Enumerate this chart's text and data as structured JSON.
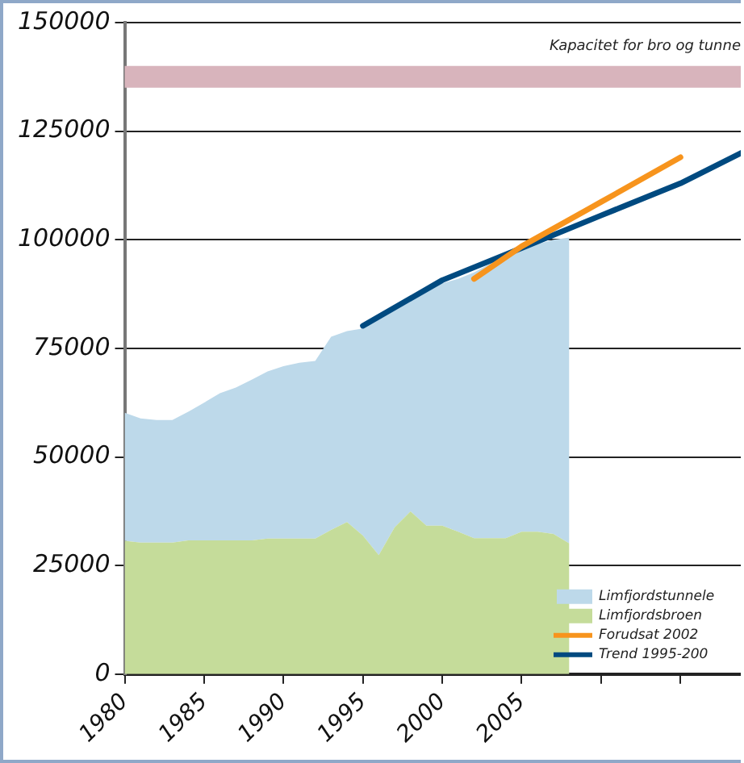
{
  "chart_data": {
    "type": "area",
    "stacked": true,
    "x": [
      1980,
      1981,
      1982,
      1983,
      1984,
      1985,
      1986,
      1987,
      1988,
      1989,
      1990,
      1991,
      1992,
      1993,
      1994,
      1995,
      1996,
      1997,
      1998,
      1999,
      2000,
      2001,
      2002,
      2003,
      2004,
      2005,
      2006,
      2007,
      2008
    ],
    "series": [
      {
        "name": "Limfjordsbroen",
        "color": "#c5dc9a",
        "values": [
          30700,
          30300,
          30300,
          30300,
          30800,
          30800,
          30800,
          30800,
          30800,
          31200,
          31200,
          31200,
          31200,
          33200,
          35000,
          31900,
          27400,
          33800,
          37500,
          34200,
          34200,
          32800,
          31300,
          31300,
          31300,
          32800,
          32800,
          32300,
          30100
        ]
      },
      {
        "name": "Limfjordstunnele",
        "color": "#bdd9ea",
        "values": [
          29500,
          28600,
          28200,
          28200,
          29600,
          31700,
          33900,
          35200,
          37000,
          38500,
          39700,
          40500,
          40900,
          44500,
          44000,
          47700,
          54600,
          50700,
          49000,
          54300,
          55800,
          58200,
          61200,
          63200,
          64700,
          65200,
          66200,
          67700,
          70400
        ]
      },
      {
        "name": "Forudsat 2002",
        "type": "line",
        "color": "#f7941d",
        "x": [
          2002,
          2005,
          2010,
          2015
        ],
        "values": [
          91000,
          98500,
          108700,
          119000
        ]
      },
      {
        "name": "Trend 1995-200",
        "type": "line",
        "color": "#004a80",
        "x": [
          1995,
          2000,
          2005,
          2010,
          2015,
          2019
        ],
        "values": [
          80200,
          90700,
          98100,
          105600,
          113000,
          120300
        ]
      }
    ],
    "xlim": [
      1980,
      2019
    ],
    "xticks": [
      1980,
      1985,
      1990,
      1995,
      2000,
      2005,
      {
        "value": 2010,
        "label": null
      },
      {
        "value": 2015,
        "label": null
      }
    ],
    "ylim": [
      0,
      150000
    ],
    "yticks": [
      0,
      25000,
      50000,
      75000,
      100000,
      125000,
      150000
    ],
    "bands": [
      {
        "axis": "y",
        "from": 135000,
        "to": 140000,
        "label": "Kapacitet for bro og tunne",
        "color": "#d8b4bc"
      }
    ],
    "grid": "y",
    "legend": "bottom right",
    "marker": "none",
    "line_style": "solid"
  }
}
